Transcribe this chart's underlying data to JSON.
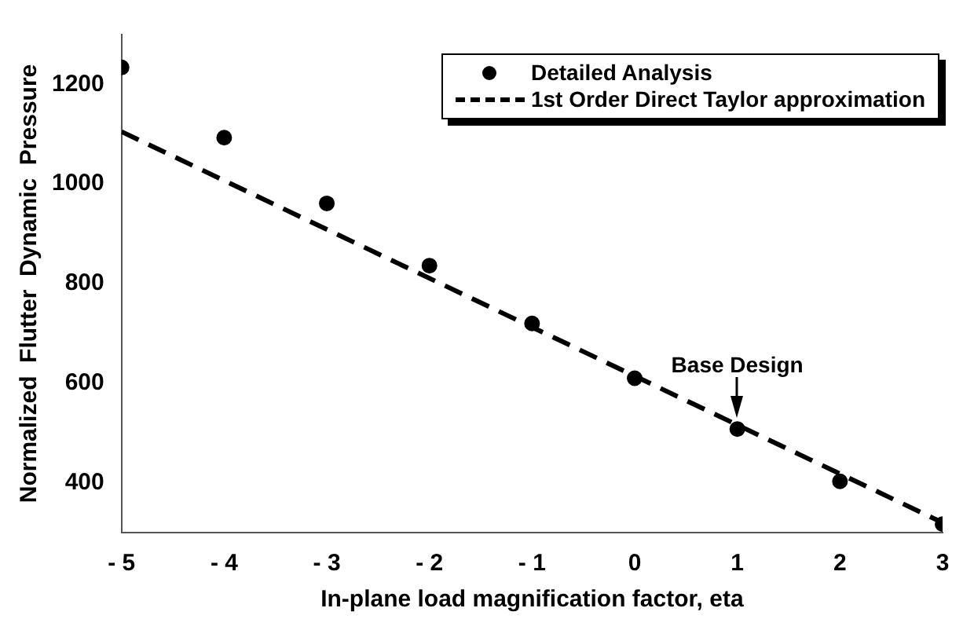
{
  "chart_data": {
    "type": "scatter",
    "xlabel": "In-plane load magnification factor, eta",
    "ylabel": "Normalized  Flutter  Dynamic  Pressure",
    "xlim": [
      -5,
      3
    ],
    "ylim": [
      300,
      1300
    ],
    "xticks": [
      {
        "value": -5,
        "label": "- 5"
      },
      {
        "value": -4,
        "label": "- 4"
      },
      {
        "value": -3,
        "label": "- 3"
      },
      {
        "value": -2,
        "label": "- 2"
      },
      {
        "value": -1,
        "label": "- 1"
      },
      0,
      1,
      2,
      3
    ],
    "yticks": [
      400,
      600,
      800,
      1000,
      1200
    ],
    "grid": false,
    "legend": "top right",
    "annotations": [
      {
        "text": "Base Design",
        "x": 1,
        "y": 508
      }
    ],
    "series": [
      {
        "name": "Detailed Analysis",
        "type": "scatter",
        "color": "#000000",
        "marker": "circle",
        "x": [
          -5,
          -4,
          -3,
          -2,
          -1,
          0,
          1,
          2,
          3
        ],
        "values": [
          1234,
          1093,
          961,
          836,
          720,
          610,
          508,
          403,
          317
        ]
      },
      {
        "name": "1st Order Direct Taylor approximation",
        "type": "line",
        "color": "#000000",
        "marker": "none",
        "line_style": "dashed",
        "x": [
          -5,
          3
        ],
        "values": [
          1105,
          320
        ]
      }
    ]
  }
}
